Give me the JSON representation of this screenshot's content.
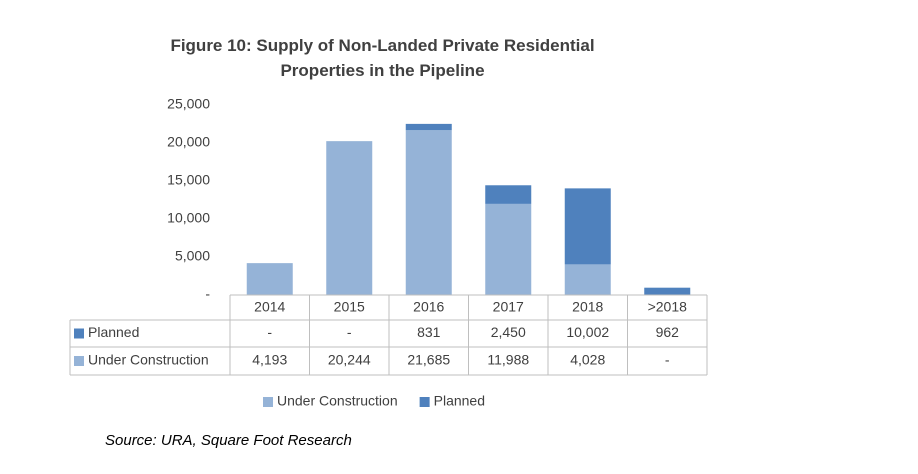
{
  "chart_data": {
    "type": "bar",
    "stacked": true,
    "title": "Figure 10: Supply of Non-Landed Private Residential Properties in the Pipeline",
    "categories": [
      "2014",
      "2015",
      "2016",
      "2017",
      "2018",
      ">2018"
    ],
    "series": [
      {
        "name": "Under Construction",
        "color": "#95b3d7",
        "values": [
          4193,
          20244,
          21685,
          11988,
          4028,
          null
        ],
        "value_labels": [
          "4,193",
          "20,244",
          "21,685",
          "11,988",
          "4,028",
          "-"
        ]
      },
      {
        "name": "Planned",
        "color": "#4f81bd",
        "values": [
          null,
          null,
          831,
          2450,
          10002,
          962
        ],
        "value_labels": [
          "-",
          "-",
          "831",
          "2,450",
          "10,002",
          "962"
        ]
      }
    ],
    "ylim": [
      0,
      25000
    ],
    "yticks": [
      {
        "value": 0,
        "label": "-"
      },
      {
        "value": 5000,
        "label": "5,000"
      },
      {
        "value": 10000,
        "label": "10,000"
      },
      {
        "value": 15000,
        "label": "15,000"
      },
      {
        "value": 20000,
        "label": "20,000"
      },
      {
        "value": 25000,
        "label": "25,000"
      }
    ],
    "grid": false,
    "source": "Source: URA, Square Foot Research"
  }
}
